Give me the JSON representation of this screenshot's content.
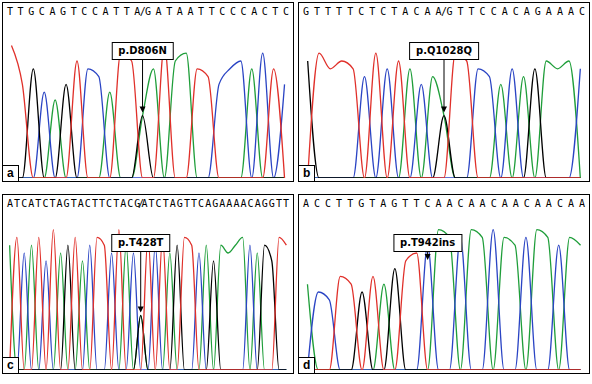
{
  "chart_data": [
    {
      "type": "line",
      "panel": "a",
      "sequence": "T T G C A G T C C A T T A/G A T A A T T C C C A C T C",
      "heights": [
        85,
        60,
        70,
        55,
        50,
        60,
        75,
        70,
        65,
        55,
        80,
        75,
        40,
        70,
        85,
        75,
        80,
        70,
        65,
        60,
        70,
        75,
        70,
        80,
        70,
        60
      ],
      "colors": {
        "A": "#1f9e3a",
        "C": "#2a44c4",
        "G": "#000000",
        "T": "#e0302a"
      },
      "annotation": {
        "text": "p.D806N",
        "base": 12
      },
      "ylim": [
        0,
        100
      ],
      "tick_labels": false
    },
    {
      "type": "line",
      "panel": "b",
      "sequence": "G T T T T C T C T A C A A/G T T C C A C A G A A A C",
      "heights": [
        75,
        80,
        70,
        75,
        70,
        65,
        80,
        70,
        75,
        70,
        60,
        65,
        40,
        80,
        75,
        70,
        65,
        60,
        70,
        65,
        70,
        75,
        70,
        75,
        70
      ],
      "colors": {
        "A": "#1f9e3a",
        "C": "#2a44c4",
        "G": "#000000",
        "T": "#e0302a"
      },
      "annotation": {
        "text": "p.Q1028Q",
        "base": 12
      },
      "ylim": [
        0,
        100
      ],
      "tick_labels": false
    },
    {
      "type": "line",
      "panel": "c",
      "sequence": "A T C A T C T A G T A C T T C T A C G/A T C T A G T T C A G A A A A C A G G T T",
      "heights": [
        80,
        85,
        75,
        80,
        85,
        70,
        90,
        75,
        80,
        85,
        70,
        80,
        85,
        80,
        75,
        90,
        80,
        75,
        35,
        85,
        80,
        85,
        75,
        80,
        85,
        80,
        75,
        80,
        70,
        80,
        75,
        80,
        85,
        80,
        75,
        80,
        70,
        85,
        80
      ],
      "colors": {
        "A": "#1f9e3a",
        "C": "#2a44c4",
        "G": "#000000",
        "T": "#e0302a"
      },
      "annotation": {
        "text": "p.T428T",
        "base": 18
      },
      "ylim": [
        0,
        100
      ],
      "tick_labels": false
    },
    {
      "type": "line",
      "panel": "d",
      "sequence": "A C C T T G T A G T T C A A C A A C A A C A A C A A",
      "heights": [
        55,
        50,
        45,
        60,
        55,
        50,
        60,
        55,
        65,
        70,
        75,
        80,
        90,
        85,
        85,
        90,
        85,
        90,
        85,
        80,
        85,
        90,
        85,
        80,
        85,
        80
      ],
      "colors": {
        "A": "#1f9e3a",
        "C": "#2a44c4",
        "G": "#000000",
        "T": "#e0302a"
      },
      "annotation": {
        "text": "p.T942ins",
        "base": 11
      },
      "ylim": [
        0,
        100
      ],
      "tick_labels": false
    }
  ]
}
